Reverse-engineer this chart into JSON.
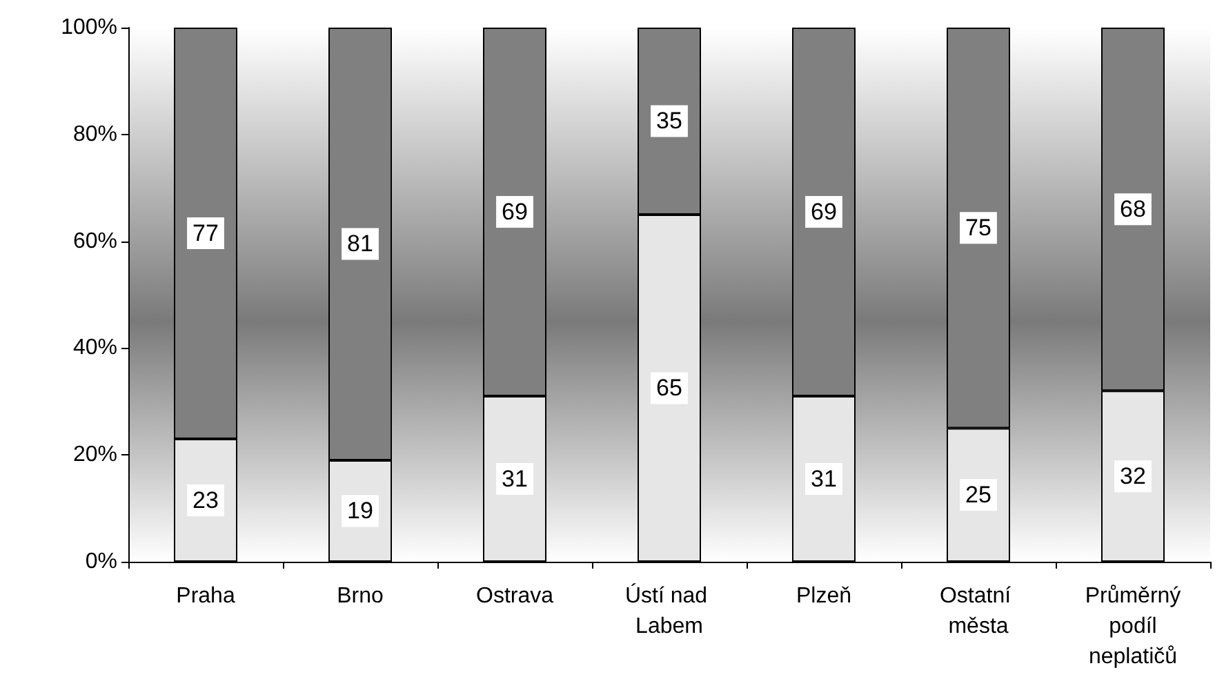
{
  "chart_data": {
    "type": "bar",
    "stacked": true,
    "data_labels": true,
    "categories": [
      "Praha",
      "Brno",
      "Ostrava",
      "Ústí nad Labem",
      "Plzeň",
      "Ostatní města",
      "Průměrný podíl neplatičů"
    ],
    "series": [
      {
        "color": "#e6e6e6",
        "values": [
          23,
          19,
          31,
          65,
          31,
          25,
          32
        ]
      },
      {
        "color": "#808080",
        "values": [
          77,
          81,
          69,
          35,
          69,
          75,
          68
        ]
      }
    ],
    "ylim": [
      0,
      100
    ],
    "yticks": [
      {
        "value": 0,
        "label": "0%"
      },
      {
        "value": 20,
        "label": "20%"
      },
      {
        "value": 40,
        "label": "40%"
      },
      {
        "value": 60,
        "label": "60%"
      },
      {
        "value": 80,
        "label": "80%"
      },
      {
        "value": 100,
        "label": "100%"
      }
    ]
  }
}
